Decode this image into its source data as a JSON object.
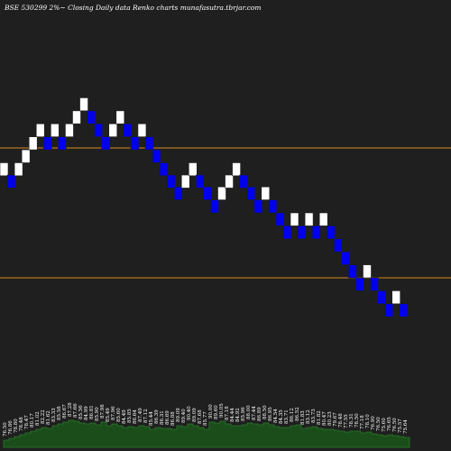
{
  "chart_data": {
    "type": "renko",
    "title": "BSE 530299 2%~  Closing Daily data  Renko  charts munafasutra.tbrjar.com",
    "colors": {
      "background": "#1f1f1f",
      "up_brick": "#ffffff",
      "down_brick": "#0000ee",
      "brick_border": "#1f1f1f",
      "reference_line": "#d98a1e",
      "volume_fill": "#1b4d1b",
      "volume_stroke": "#2a7a2a",
      "text": "#ffffff"
    },
    "price_range": [
      33.5,
      51
    ],
    "reference_lines": [
      44,
      37
    ],
    "bricks": [
      {
        "dir": "up",
        "price": 42.5
      },
      {
        "dir": "down",
        "price": 41.84
      },
      {
        "dir": "up",
        "price": 42.5
      },
      {
        "dir": "up",
        "price": 43.2
      },
      {
        "dir": "up",
        "price": 43.9
      },
      {
        "dir": "up",
        "price": 44.6
      },
      {
        "dir": "down",
        "price": 43.9
      },
      {
        "dir": "up",
        "price": 44.6
      },
      {
        "dir": "down",
        "price": 43.9
      },
      {
        "dir": "up",
        "price": 44.6
      },
      {
        "dir": "up",
        "price": 45.3
      },
      {
        "dir": "up",
        "price": 46
      },
      {
        "dir": "down",
        "price": 45.3
      },
      {
        "dir": "down",
        "price": 44.6
      },
      {
        "dir": "down",
        "price": 43.9
      },
      {
        "dir": "up",
        "price": 44.6
      },
      {
        "dir": "up",
        "price": 45.3
      },
      {
        "dir": "down",
        "price": 44.6
      },
      {
        "dir": "down",
        "price": 43.9
      },
      {
        "dir": "up",
        "price": 44.6
      },
      {
        "dir": "down",
        "price": 43.9
      },
      {
        "dir": "down",
        "price": 43.2
      },
      {
        "dir": "down",
        "price": 42.5
      },
      {
        "dir": "down",
        "price": 41.84
      },
      {
        "dir": "down",
        "price": 41.2
      },
      {
        "dir": "up",
        "price": 41.84
      },
      {
        "dir": "up",
        "price": 42.5
      },
      {
        "dir": "down",
        "price": 41.84
      },
      {
        "dir": "down",
        "price": 41.2
      },
      {
        "dir": "down",
        "price": 40.5
      },
      {
        "dir": "up",
        "price": 41.2
      },
      {
        "dir": "up",
        "price": 41.84
      },
      {
        "dir": "up",
        "price": 42.5
      },
      {
        "dir": "down",
        "price": 41.84
      },
      {
        "dir": "down",
        "price": 41.2
      },
      {
        "dir": "down",
        "price": 40.5
      },
      {
        "dir": "up",
        "price": 41.2
      },
      {
        "dir": "down",
        "price": 40.5
      },
      {
        "dir": "down",
        "price": 39.8
      },
      {
        "dir": "down",
        "price": 39.1
      },
      {
        "dir": "up",
        "price": 39.8
      },
      {
        "dir": "down",
        "price": 39.1
      },
      {
        "dir": "up",
        "price": 39.8
      },
      {
        "dir": "down",
        "price": 39.1
      },
      {
        "dir": "up",
        "price": 39.8
      },
      {
        "dir": "down",
        "price": 39.1
      },
      {
        "dir": "down",
        "price": 38.4
      },
      {
        "dir": "down",
        "price": 37.7
      },
      {
        "dir": "down",
        "price": 37
      },
      {
        "dir": "down",
        "price": 36.3
      },
      {
        "dir": "up",
        "price": 37
      },
      {
        "dir": "down",
        "price": 36.3
      },
      {
        "dir": "down",
        "price": 35.6
      },
      {
        "dir": "down",
        "price": 34.9
      },
      {
        "dir": "up",
        "price": 35.6
      },
      {
        "dir": "down",
        "price": 34.9
      }
    ],
    "volume_labels": [
      "76.50",
      "76.86",
      "78.80",
      "78.48",
      "78.47",
      "80.17",
      "81.02",
      "82.22",
      "81.62",
      "83.33",
      "85.58",
      "86.67",
      "87.28",
      "87.66",
      "85.56",
      "84.99",
      "86.81",
      "85.90",
      "87.98",
      "85.49",
      "87.96",
      "85.60",
      "84.49",
      "85.85",
      "86.64",
      "87.49",
      "87.12",
      "85.44",
      "86.39",
      "86.31",
      "86.69",
      "86.88",
      "89.09",
      "89.40",
      "90.40",
      "89.09",
      "87.68",
      "85.77",
      "90.00",
      "89.60",
      "90.05",
      "87.18",
      "84.44",
      "84.92",
      "85.96",
      "88.00",
      "87.44",
      "86.89",
      "88.50",
      "86.95",
      "84.54",
      "84.35",
      "83.71",
      "86.12",
      "86.52",
      "81.83",
      "83.12",
      "83.73",
      "81.82",
      "80.47",
      "80.23",
      "79.67",
      "78.48",
      "77.55",
      "78.31",
      "78.50",
      "77.18",
      "78.10",
      "76.90",
      "76.50",
      "75.60",
      "76.65",
      "76.50",
      "75.57",
      "75.64"
    ],
    "volume_heights": [
      8,
      10,
      12,
      14,
      16,
      18,
      20,
      22,
      21,
      24,
      26,
      28,
      30,
      29,
      27,
      26,
      27,
      25,
      28,
      24,
      26,
      24,
      22,
      23,
      22,
      24,
      23,
      20,
      22,
      21,
      21,
      20,
      24,
      23,
      26,
      24,
      22,
      20,
      28,
      27,
      29,
      26,
      24,
      24,
      25,
      27,
      26,
      25,
      27,
      25,
      23,
      22,
      22,
      24,
      25,
      21,
      22,
      23,
      21,
      20,
      20,
      19,
      18,
      17,
      18,
      18,
      16,
      17,
      15,
      14,
      13,
      14,
      13,
      12,
      11
    ]
  }
}
